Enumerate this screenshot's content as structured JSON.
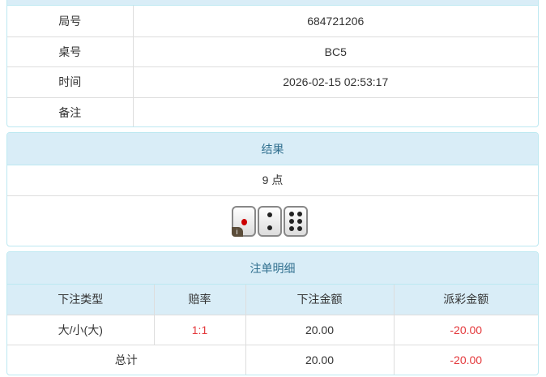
{
  "info": {
    "rows": [
      {
        "label": "局号",
        "value": "684721206"
      },
      {
        "label": "桌号",
        "value": "BC5"
      },
      {
        "label": "时间",
        "value": "2026-02-15 02:53:17"
      },
      {
        "label": "备注",
        "value": ""
      }
    ]
  },
  "result": {
    "title": "结果",
    "points": "9 点",
    "dice": [
      1,
      2,
      6
    ],
    "info_badge": "i"
  },
  "bets": {
    "title": "注单明细",
    "columns": [
      "下注类型",
      "赔率",
      "下注金额",
      "派彩金额"
    ],
    "rows": [
      {
        "type": "大/小(大)",
        "odds": "1:1",
        "amount": "20.00",
        "payout": "-20.00"
      }
    ],
    "total": {
      "label": "总计",
      "amount": "20.00",
      "payout": "-20.00"
    },
    "colors": {
      "negative": "#e4393c",
      "header_bg": "#d9edf7"
    }
  }
}
